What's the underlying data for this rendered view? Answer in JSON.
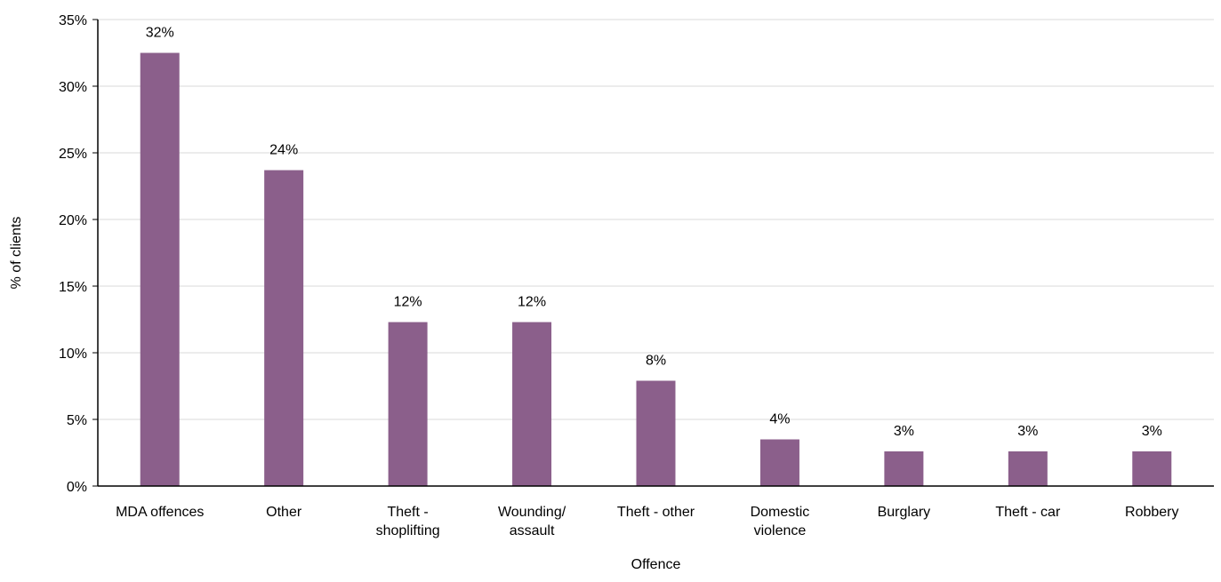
{
  "chart_data": {
    "type": "bar",
    "xlabel": "Offence",
    "ylabel": "% of clients",
    "ylim": [
      0,
      35
    ],
    "ytick_step": 5,
    "ytick_suffix": "%",
    "grid": "horizontal",
    "bar_color": "#8b5f8b",
    "categories": [
      [
        "MDA offences"
      ],
      [
        "Other"
      ],
      [
        "Theft -",
        "shoplifting"
      ],
      [
        "Wounding/",
        "assault"
      ],
      [
        "Theft - other"
      ],
      [
        "Domestic",
        "violence"
      ],
      [
        "Burglary"
      ],
      [
        "Theft - car"
      ],
      [
        "Robbery"
      ]
    ],
    "values": [
      32.5,
      23.7,
      12.3,
      12.3,
      7.9,
      3.5,
      2.6,
      2.6,
      2.6
    ],
    "labels": [
      "32%",
      "24%",
      "12%",
      "12%",
      "8%",
      "4%",
      "3%",
      "3%",
      "3%"
    ]
  }
}
